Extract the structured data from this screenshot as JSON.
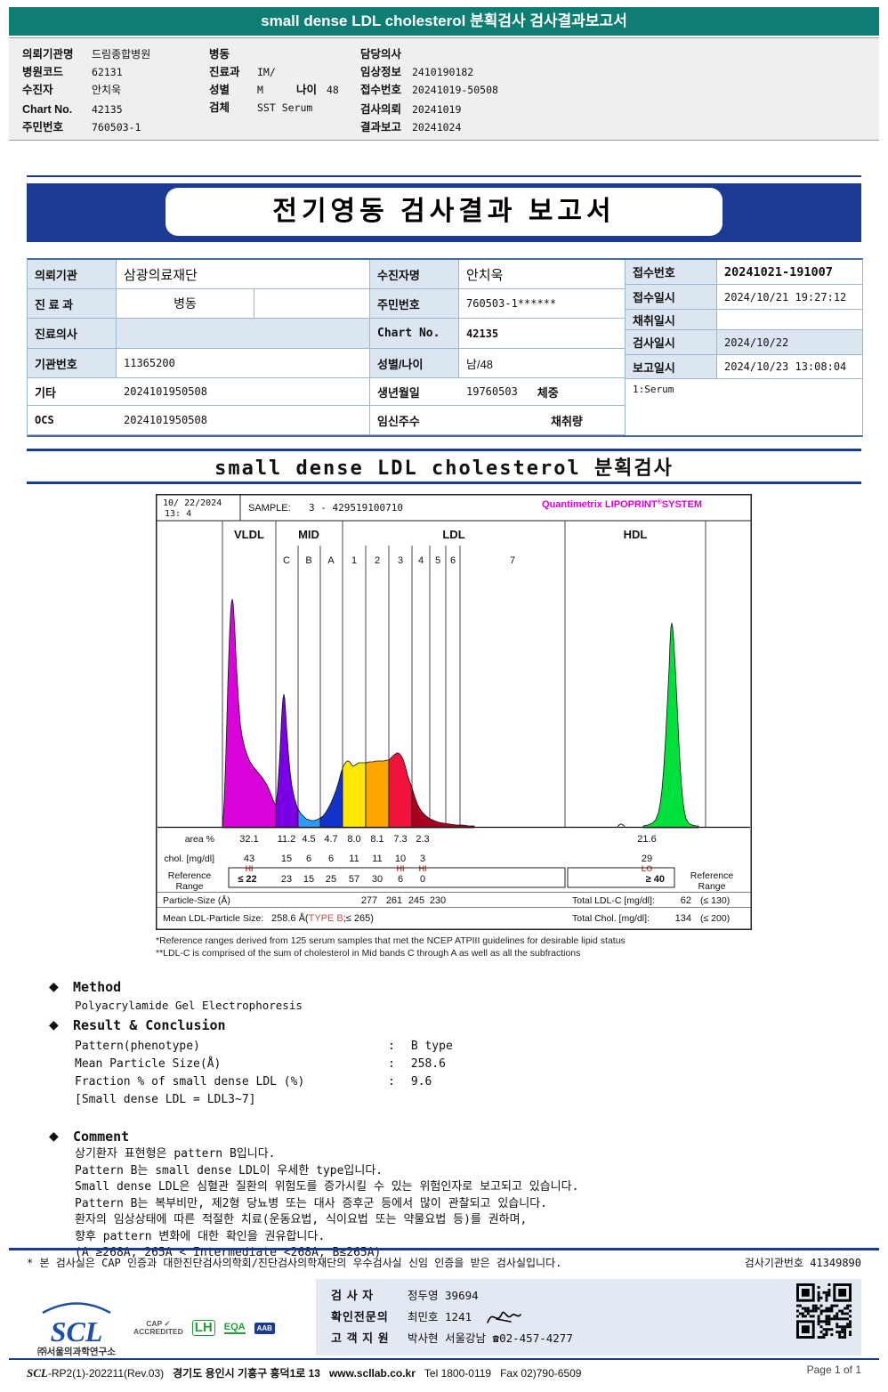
{
  "top_bar": {
    "title": "small dense LDL cholesterol 분획검사 검사결과보고서",
    "bg": "#0e7d74"
  },
  "patient_header": {
    "col1": [
      {
        "label": "의뢰기관명",
        "value": "드림종합병원"
      },
      {
        "label": "병원코드",
        "value": "62131"
      },
      {
        "label": "수진자",
        "value": "안치욱"
      },
      {
        "label": "Chart No.",
        "value": "42135"
      },
      {
        "label": "주민번호",
        "value": "760503-1"
      }
    ],
    "col2": [
      {
        "label": "병동",
        "value": ""
      },
      {
        "label": "진료과",
        "value": "IM/"
      },
      {
        "label": "성별",
        "value": "M",
        "label2": "나이",
        "value2": "48"
      },
      {
        "label": "검체",
        "value": "SST Serum"
      }
    ],
    "col3": [
      {
        "label": "담당의사",
        "value": ""
      },
      {
        "label": "임상정보",
        "value": "2410190182"
      },
      {
        "label": "접수번호",
        "value": "20241019-50508"
      },
      {
        "label": "검사의뢰",
        "value": "20241019"
      },
      {
        "label": "결과보고",
        "value": "20241024"
      }
    ]
  },
  "banner": {
    "title": "전기영동 검사결과 보고서",
    "bg": "#1a3a94"
  },
  "info_table": {
    "left": [
      {
        "label": "의뢰기관",
        "value": "삼광의료재단"
      },
      {
        "label": "진 료 과",
        "value": "병동"
      },
      {
        "label": "진료의사",
        "value": ""
      },
      {
        "label": "기관번호",
        "value": "11365200"
      },
      {
        "label": "기타",
        "value": "2024101950508"
      },
      {
        "label": "OCS",
        "value": "2024101950508"
      }
    ],
    "middle": [
      {
        "label": "수진자명",
        "value": "안치욱"
      },
      {
        "label": "주민번호",
        "value": "760503-1******"
      },
      {
        "label": "Chart No.",
        "value": "42135"
      },
      {
        "label": "성별/나이",
        "value": "남/48"
      },
      {
        "label": "생년월일",
        "value": "19760503",
        "extra": "체중"
      },
      {
        "label": "임신주수",
        "value": "",
        "extra": "채취량"
      }
    ],
    "right": [
      {
        "label": "접수번호",
        "value": "20241021-191007"
      },
      {
        "label": "접수일시",
        "value": "2024/10/21 19:27:12"
      },
      {
        "label": "채취일시",
        "value": ""
      },
      {
        "label": "검사일시",
        "value": "2024/10/22"
      },
      {
        "label": "보고일시",
        "value": "2024/10/23 13:08:04"
      }
    ],
    "specimen": "1:Serum"
  },
  "section": {
    "title": "small dense LDL cholesterol 분획검사"
  },
  "lipoprint": {
    "datetime_line1": "10/ 22/2024",
    "datetime_line2": "13:  4",
    "sample_label": "SAMPLE:",
    "sample_id": "3 - 429519100710",
    "brand_prefix": "Quantimetrix ",
    "brand_name": "LIPOPRINT",
    "brand_reg": "®",
    "brand_suffix": "SYSTEM",
    "brand_color": "#e100e1",
    "bands_major": [
      "VLDL",
      "MID",
      "LDL",
      "HDL"
    ],
    "mid_sub": [
      "C",
      "B",
      "A"
    ],
    "ldl_sub": [
      "1",
      "2",
      "3",
      "4",
      "5",
      "6",
      "7"
    ],
    "labels": {
      "area": "area %",
      "chol": "chol. [mg/dl]",
      "ref1": "Reference",
      "ref2": "Range",
      "particle": "Particle-Size (Å)",
      "mean": "Mean LDL-Particle Size:"
    },
    "area_pct": [
      "32.1",
      "11.2",
      "4.5",
      "4.7",
      "8.0",
      "8.1",
      "7.3",
      "2.3",
      "21.6"
    ],
    "chol_mgdl": [
      "43",
      "15",
      "6",
      "6",
      "11",
      "11",
      "10",
      "3",
      "29"
    ],
    "chol_flags": [
      "HI",
      "",
      "",
      "",
      "",
      "",
      "HI",
      "HI",
      "LO"
    ],
    "ref_values": [
      "≤ 22",
      "23",
      "15",
      "25",
      "57",
      "30",
      "6",
      "0"
    ],
    "ref_hdl": "≥ 40",
    "particle_sizes": [
      "277",
      "261",
      "245",
      "230"
    ],
    "mean_value": "258.6 Å(",
    "mean_type": "TYPE B",
    "mean_close": ";≤ 265)",
    "total_ldl_label": "Total LDL-C [mg/dl]:",
    "total_ldl_value": "62",
    "total_ldl_ref": "(≤ 130)",
    "total_chol_label": "Total Chol. [mg/dl]:",
    "total_chol_value": "134",
    "total_chol_ref": "(≤ 200)",
    "footnote1": "*Reference ranges derived from 125 serum samples that met the NCEP ATPIII guidelines for desirable lipid status",
    "footnote2": "**LDL-C is comprised of the sum of cholesterol in Mid bands C through A as well as all the subfractions",
    "curve_colors": {
      "vldl": "#d803d8",
      "mid_c": "#7a00e6",
      "mid_b": "#2e9af5",
      "mid_a": "#1133cc",
      "ldl1": "#ffe800",
      "ldl2": "#ffa500",
      "ldl3": "#f0143c",
      "ldl4": "#aa0020",
      "hdl": "#00e03c"
    }
  },
  "method": {
    "heading": "Method",
    "body": "Polyacrylamide Gel Electrophoresis"
  },
  "result": {
    "heading": "Result & Conclusion",
    "colon": ":",
    "rows": [
      {
        "label": "Pattern(phenotype)",
        "value": "B type"
      },
      {
        "label": "Mean Particle Size(Å)",
        "value": "258.6"
      },
      {
        "label": "Fraction % of small dense LDL (%)",
        "value": "9.6"
      }
    ],
    "note": "[Small dense LDL = LDL3~7]"
  },
  "comment": {
    "heading": "Comment",
    "lines": [
      "상기환자 표현형은 pattern B입니다.",
      "Pattern B는 small dense LDL이 우세한 type입니다.",
      "Small dense LDL은 심혈관 질환의 위험도를 증가시킬 수 있는 위험인자로 보고되고 있습니다.",
      "Pattern B는 복부비만, 제2형 당뇨병 또는 대사 증후군 등에서 많이 관찰되고 있습니다.",
      "환자의 임상상태에 따른 적절한 치료(운동요법, 식이요법 또는 약물요법 등)를 권하며,",
      "향후 pattern 변화에 대한 확인을 권유합니다.",
      "(A ≥268A, 265A < Intermediate <268A, B≤265A)"
    ]
  },
  "footer": {
    "cert_note": "* 본 검사실은 CAP 인증과 대한진단검사의학회/진단검사의학재단의 우수검사실 신임 인증을 받은 검사실입니다.",
    "org_no": "검사기관번호 41349890",
    "scl_logo": "SCL",
    "scl_org": "㈜서울의과학연구소",
    "logos": {
      "cap1": "CAP ✓",
      "cap2": "ACCREDITED",
      "green": "LH",
      "eqa": "EQA",
      "aab": "AAB"
    },
    "personnel": [
      {
        "label": "검  사  자",
        "value": "정두영 39694"
      },
      {
        "label": "확인전문의",
        "value": "최민호 1241"
      },
      {
        "label": "고 객 지 원",
        "value": "박사현 서울강남 ☎02-457-4277"
      }
    ],
    "scl_mark": "SCL",
    "doc_no": "-RP2(1)-202211(Rev.03)",
    "address": "경기도 용인시 기흥구 흥덕1로 13",
    "web": "www.scllab.co.kr",
    "tel": "Tel 1800-0119",
    "fax": "Fax 02)790-6509",
    "page": "Page 1 of 1"
  }
}
